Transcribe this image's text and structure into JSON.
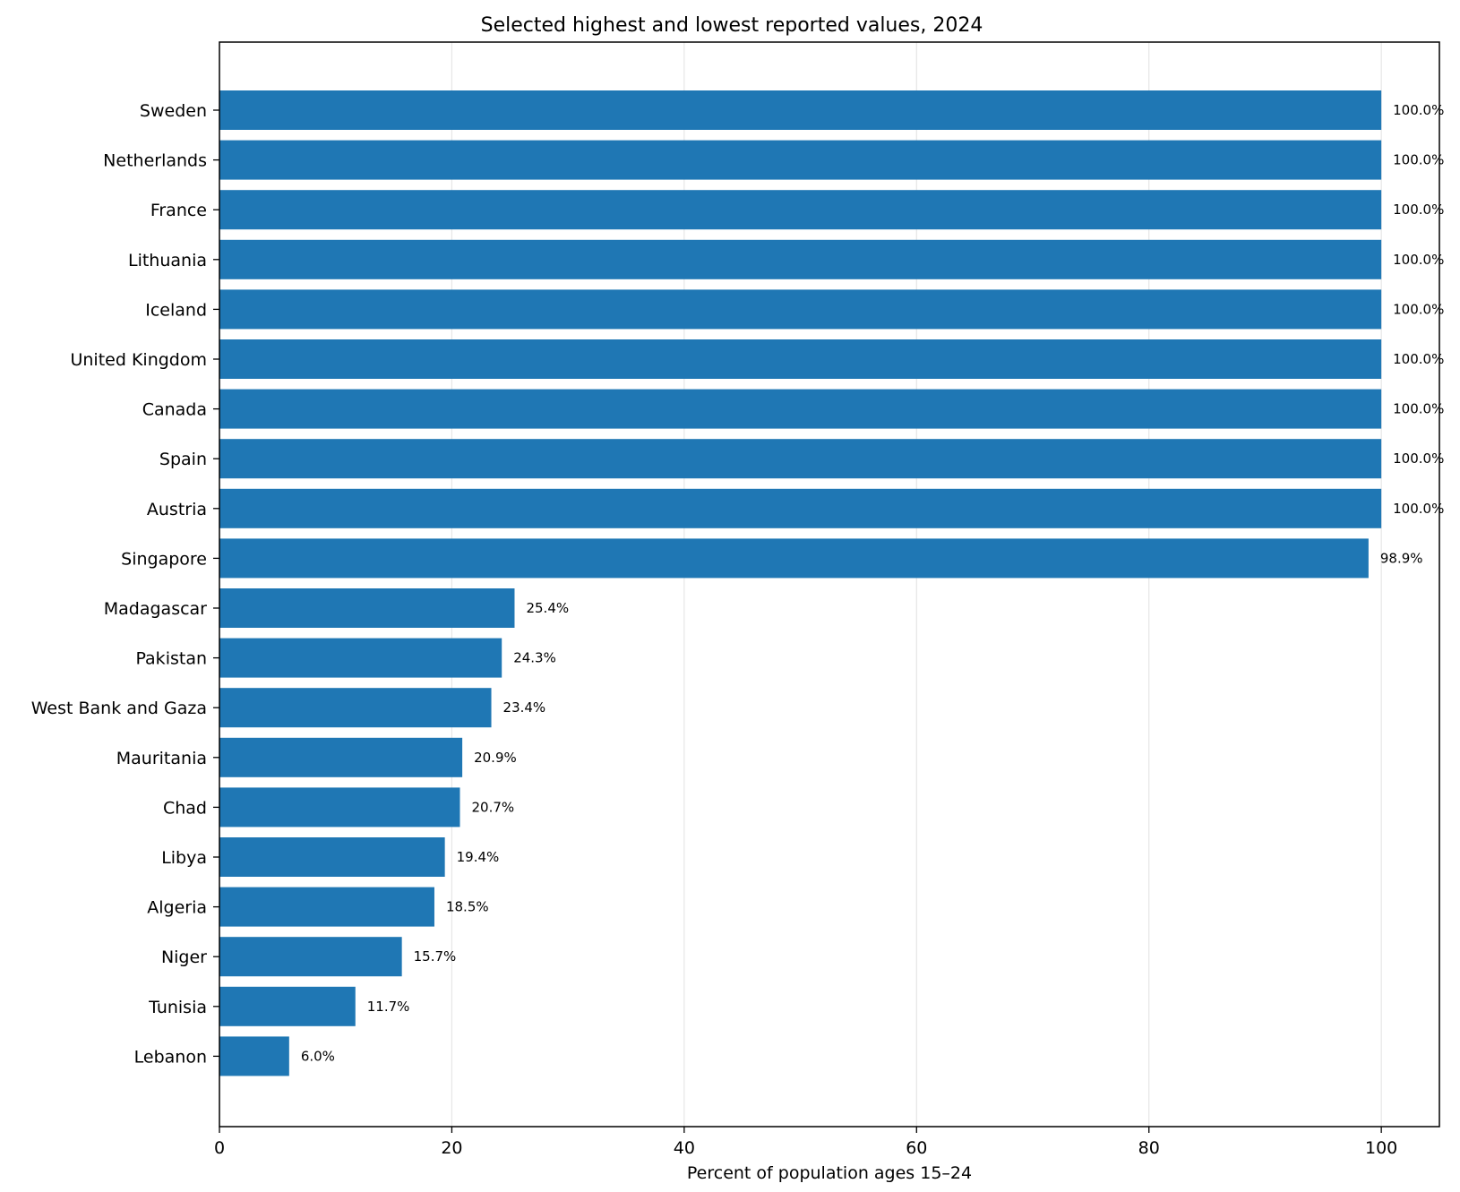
{
  "chart_data": {
    "type": "bar",
    "orientation": "horizontal",
    "title": "Selected highest and lowest reported values, 2024",
    "xlabel": "Percent of population ages 15–24",
    "ylabel": "",
    "xlim": [
      0,
      105
    ],
    "x_ticks": [
      0,
      20,
      40,
      60,
      80,
      100
    ],
    "grid": "vertical",
    "bar_color": "#1f77b4",
    "categories": [
      "Sweden",
      "Netherlands",
      "France",
      "Lithuania",
      "Iceland",
      "United Kingdom",
      "Canada",
      "Spain",
      "Austria",
      "Singapore",
      "Madagascar",
      "Pakistan",
      "West Bank and Gaza",
      "Mauritania",
      "Chad",
      "Libya",
      "Algeria",
      "Niger",
      "Tunisia",
      "Lebanon"
    ],
    "values": [
      100.0,
      100.0,
      100.0,
      100.0,
      100.0,
      100.0,
      100.0,
      100.0,
      100.0,
      98.9,
      25.4,
      24.3,
      23.4,
      20.9,
      20.7,
      19.4,
      18.5,
      15.7,
      11.7,
      6.0
    ],
    "data_labels": [
      "100.0%",
      "100.0%",
      "100.0%",
      "100.0%",
      "100.0%",
      "100.0%",
      "100.0%",
      "100.0%",
      "100.0%",
      "98.9%",
      "25.4%",
      "24.3%",
      "23.4%",
      "20.9%",
      "20.7%",
      "19.4%",
      "18.5%",
      "15.7%",
      "11.7%",
      "6.0%"
    ]
  }
}
